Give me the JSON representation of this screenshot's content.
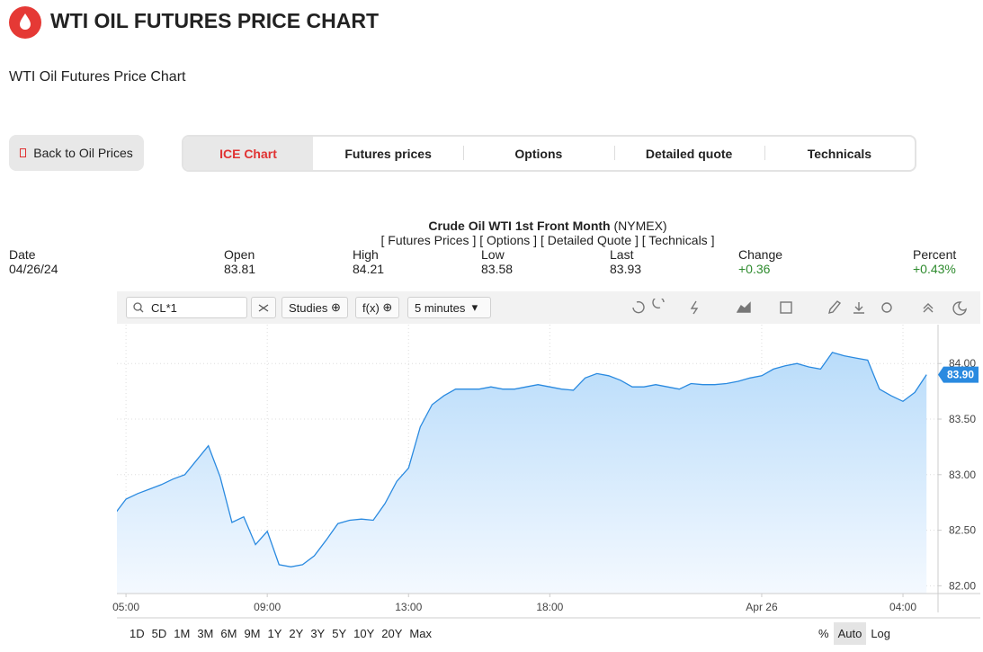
{
  "header": {
    "title": "WTI OIL FUTURES PRICE CHART",
    "subtitle": "WTI Oil Futures Price Chart"
  },
  "back_button": "Back to Oil Prices",
  "tabs": [
    "ICE Chart",
    "Futures prices",
    "Options",
    "Detailed quote",
    "Technicals"
  ],
  "quote": {
    "title": "Crude Oil WTI 1st Front Month",
    "exchange": "(NYMEX)",
    "links": [
      "[ Futures Prices ]",
      "[ Options ]",
      "[ Detailed Quote ]",
      "[ Technicals ]"
    ],
    "columns": [
      {
        "label": "Date",
        "value": "04/26/24"
      },
      {
        "label": "Open",
        "value": "83.81"
      },
      {
        "label": "High",
        "value": "84.21"
      },
      {
        "label": "Low",
        "value": "83.58"
      },
      {
        "label": "Last",
        "value": "83.93"
      },
      {
        "label": "Change",
        "value": "+0.36"
      },
      {
        "label": "Percent",
        "value": "+0.43%"
      }
    ]
  },
  "toolbar": {
    "symbol": "CL*1",
    "studies": "Studies",
    "fx": "f(x)",
    "interval": "5 minutes"
  },
  "ranges": [
    "1D",
    "5D",
    "1M",
    "3M",
    "6M",
    "9M",
    "1Y",
    "2Y",
    "3Y",
    "5Y",
    "10Y",
    "20Y",
    "Max"
  ],
  "scale_options": [
    "%",
    "Auto",
    "Log"
  ],
  "chart_data": {
    "type": "area",
    "color": "#2a8ae0",
    "categories": [
      null,
      "05:00",
      null,
      null,
      null,
      null,
      null,
      null,
      null,
      null,
      null,
      null,
      null,
      "09:00",
      null,
      null,
      null,
      null,
      null,
      null,
      null,
      null,
      null,
      null,
      null,
      "13:00",
      null,
      null,
      null,
      null,
      null,
      null,
      null,
      null,
      null,
      null,
      null,
      "18:00",
      null,
      null,
      null,
      null,
      null,
      null,
      null,
      null,
      null,
      null,
      null,
      null,
      null,
      null,
      null,
      null,
      null,
      "Apr 26",
      null,
      null,
      null,
      null,
      null,
      null,
      null,
      null,
      null,
      null,
      null,
      "04:00",
      null,
      null
    ],
    "values": [
      82.64,
      82.78,
      82.83,
      82.87,
      82.91,
      82.96,
      83.0,
      83.13,
      83.26,
      82.98,
      82.57,
      82.62,
      82.37,
      82.49,
      82.19,
      82.17,
      82.19,
      82.27,
      82.41,
      82.56,
      82.59,
      82.6,
      82.59,
      82.74,
      82.94,
      83.06,
      83.43,
      83.63,
      83.71,
      83.77,
      83.77,
      83.77,
      83.79,
      83.77,
      83.77,
      83.79,
      83.81,
      83.79,
      83.77,
      83.76,
      83.87,
      83.91,
      83.89,
      83.85,
      83.79,
      83.79,
      83.81,
      83.79,
      83.77,
      83.82,
      83.81,
      83.81,
      83.82,
      83.84,
      83.87,
      83.89,
      83.95,
      83.98,
      84.0,
      83.97,
      83.95,
      84.1,
      84.07,
      84.05,
      84.03,
      83.77,
      83.71,
      83.66,
      83.74,
      83.9
    ],
    "last_label": {
      "value": 83.9,
      "label": "83.90"
    },
    "ylim": [
      81.93,
      84.35
    ],
    "yticks": [
      {
        "value": 82,
        "label": "82.00"
      },
      {
        "value": 82.5,
        "label": "82.50"
      },
      {
        "value": 83,
        "label": "83.00"
      },
      {
        "value": 83.5,
        "label": "83.50"
      },
      {
        "value": 84,
        "label": "84.00"
      }
    ],
    "grid": true
  }
}
